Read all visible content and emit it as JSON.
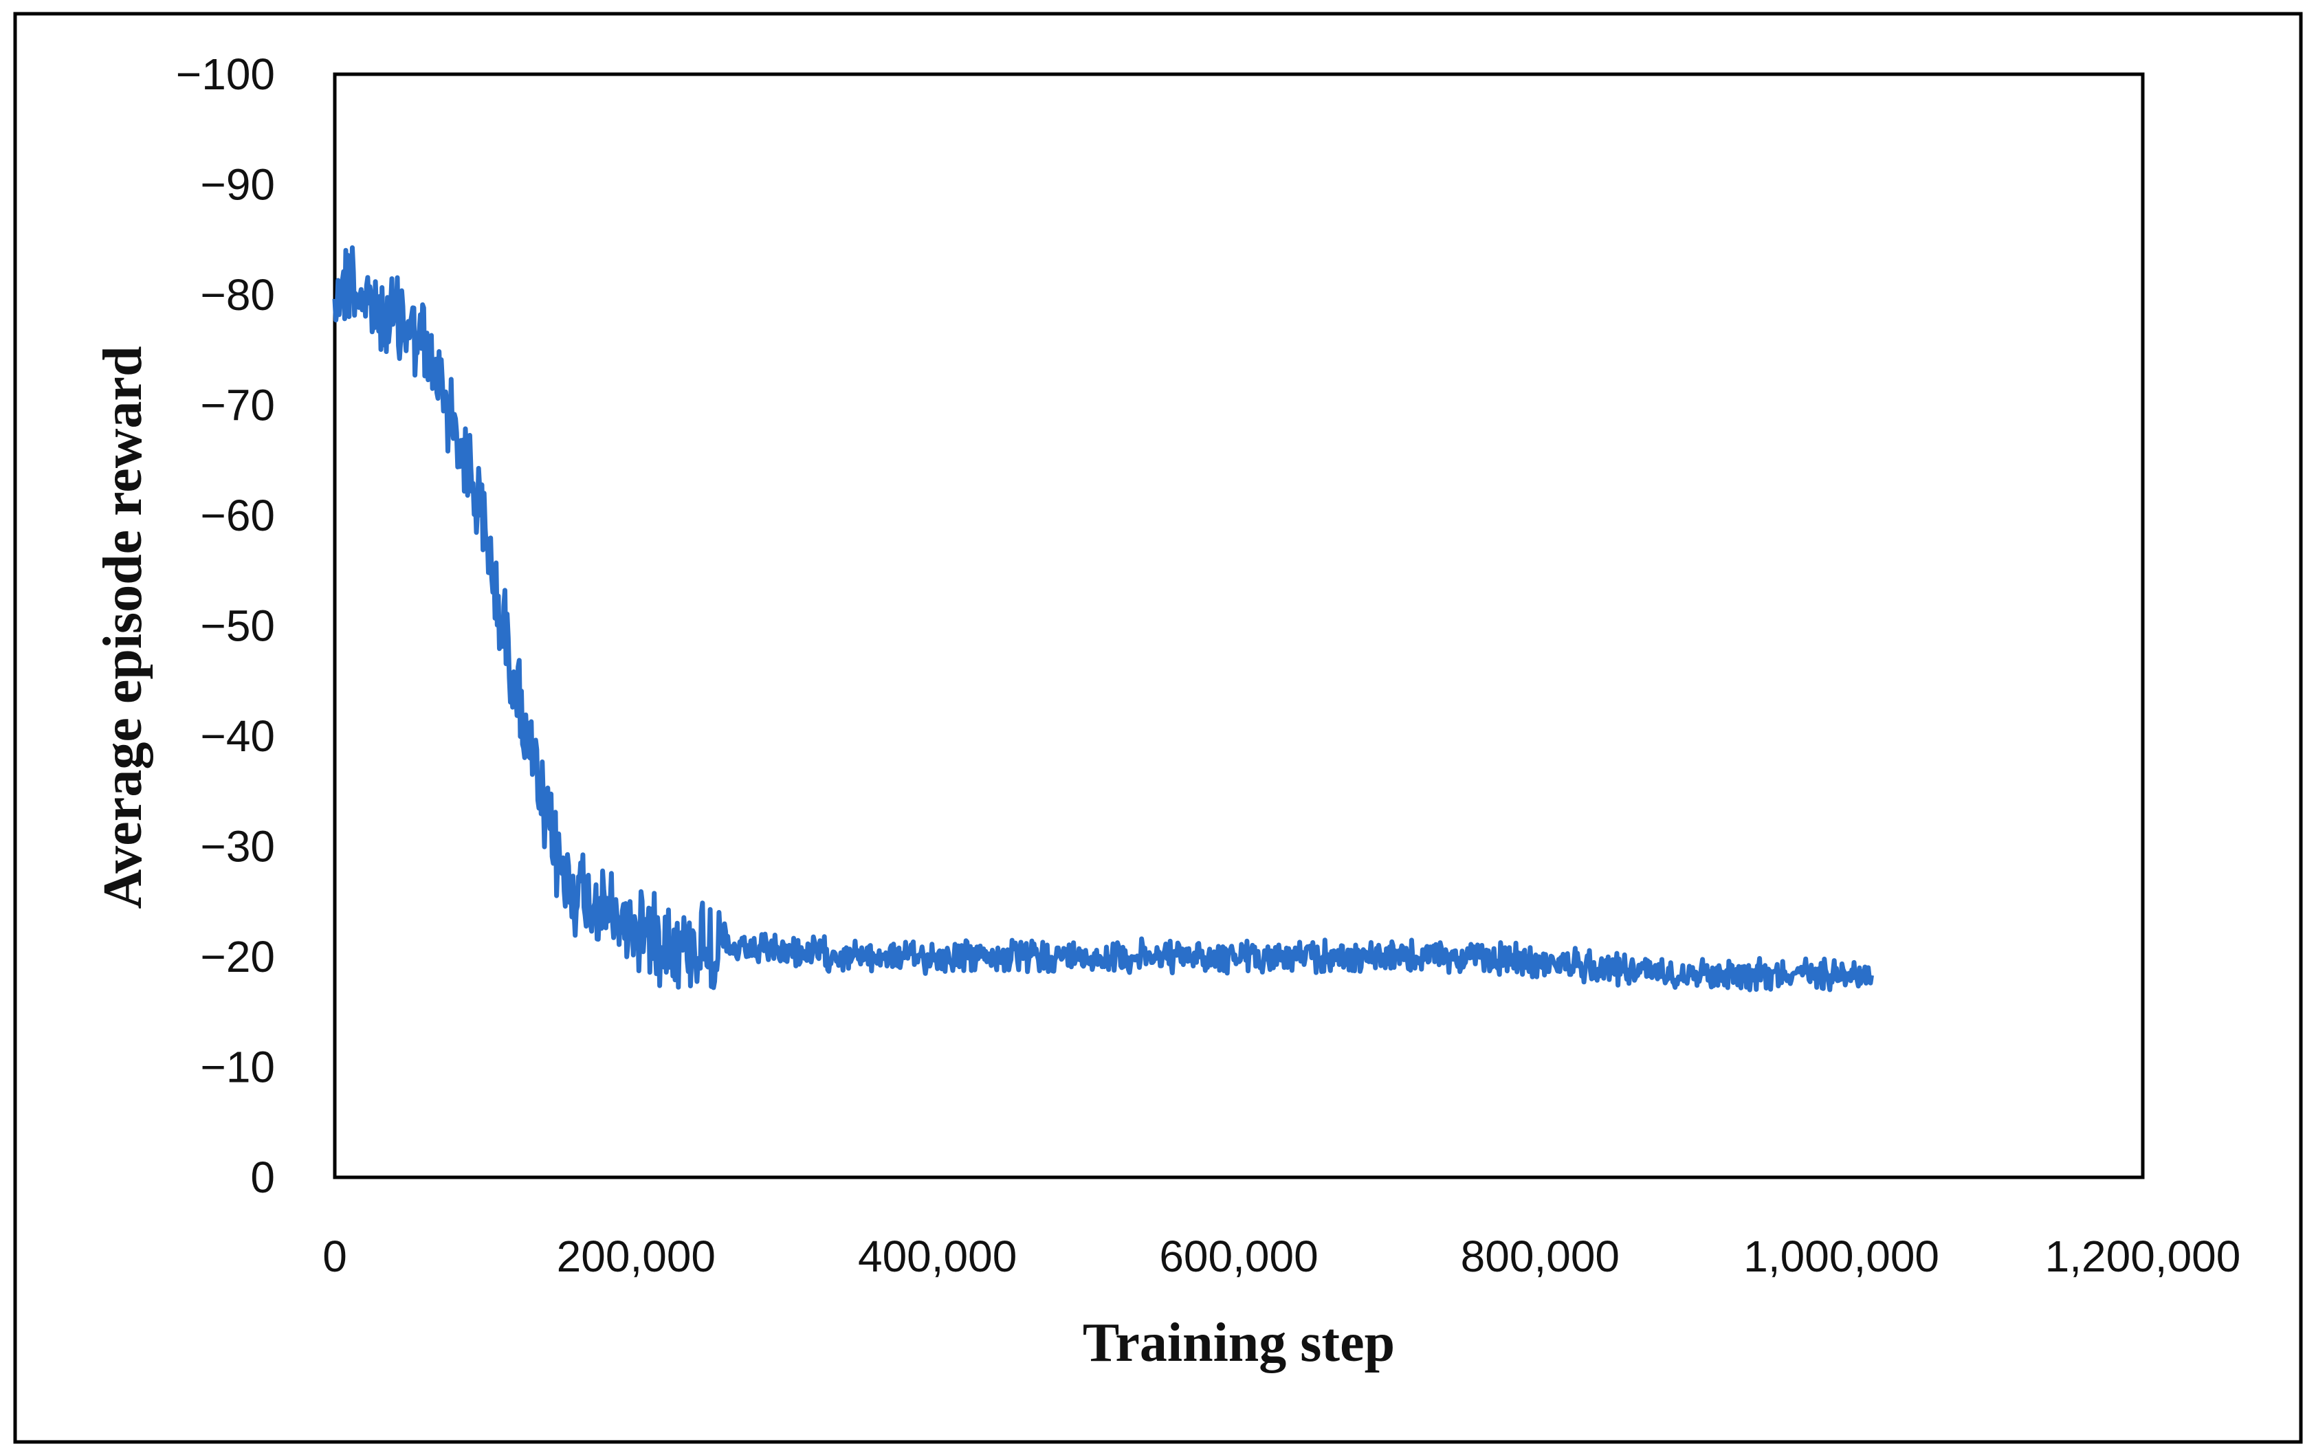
{
  "chart_data": {
    "type": "line",
    "title": "",
    "xlabel": "Training step",
    "ylabel": "Average episode reward",
    "xlim": [
      0,
      1200000
    ],
    "ylim": [
      0,
      -100
    ],
    "y_axis_inverted": true,
    "grid": false,
    "legend": "none",
    "x_tick_labels": [
      "0",
      "200,000",
      "400,000",
      "600,000",
      "800,000",
      "1,000,000",
      "1,200,000"
    ],
    "x_tick_values": [
      0,
      200000,
      400000,
      600000,
      800000,
      1000000,
      1200000
    ],
    "y_tick_labels": [
      "0",
      "−10",
      "−20",
      "−30",
      "−40",
      "−50",
      "−60",
      "−70",
      "−80",
      "−90",
      "−100"
    ],
    "y_tick_values": [
      0,
      -10,
      -20,
      -30,
      -40,
      -50,
      -60,
      -70,
      -80,
      -90,
      -100
    ],
    "series": [
      {
        "color": "#2a6fc9",
        "x": [
          0,
          10000,
          20000,
          30000,
          40000,
          50000,
          60000,
          70000,
          80000,
          90000,
          100000,
          110000,
          120000,
          130000,
          140000,
          150000,
          160000,
          170000,
          180000,
          190000,
          200000,
          210000,
          220000,
          230000,
          240000,
          250000,
          260000,
          270000,
          280000,
          290000,
          300000,
          350000,
          400000,
          450000,
          500000,
          550000,
          600000,
          650000,
          700000,
          750000,
          800000,
          850000,
          900000,
          950000,
          1000000,
          1020000
        ],
        "y": [
          -80,
          -82,
          -79,
          -78,
          -78,
          -77,
          -75,
          -72,
          -68,
          -64,
          -58,
          -51,
          -45,
          -38,
          -32,
          -28,
          -26,
          -25,
          -24,
          -23,
          -23,
          -22,
          -22,
          -21,
          -21,
          -21,
          -20.5,
          -20.5,
          -20.5,
          -20.5,
          -20.5,
          -20,
          -20,
          -20,
          -20,
          -20,
          -20,
          -20,
          -20,
          -20,
          -19.5,
          -19,
          -18.5,
          -18.5,
          -18.5,
          -18.5
        ]
      }
    ]
  },
  "colors": {
    "line": "#2a6fc9",
    "axis": "#000000",
    "frame": "#000000",
    "background": "#ffffff"
  }
}
